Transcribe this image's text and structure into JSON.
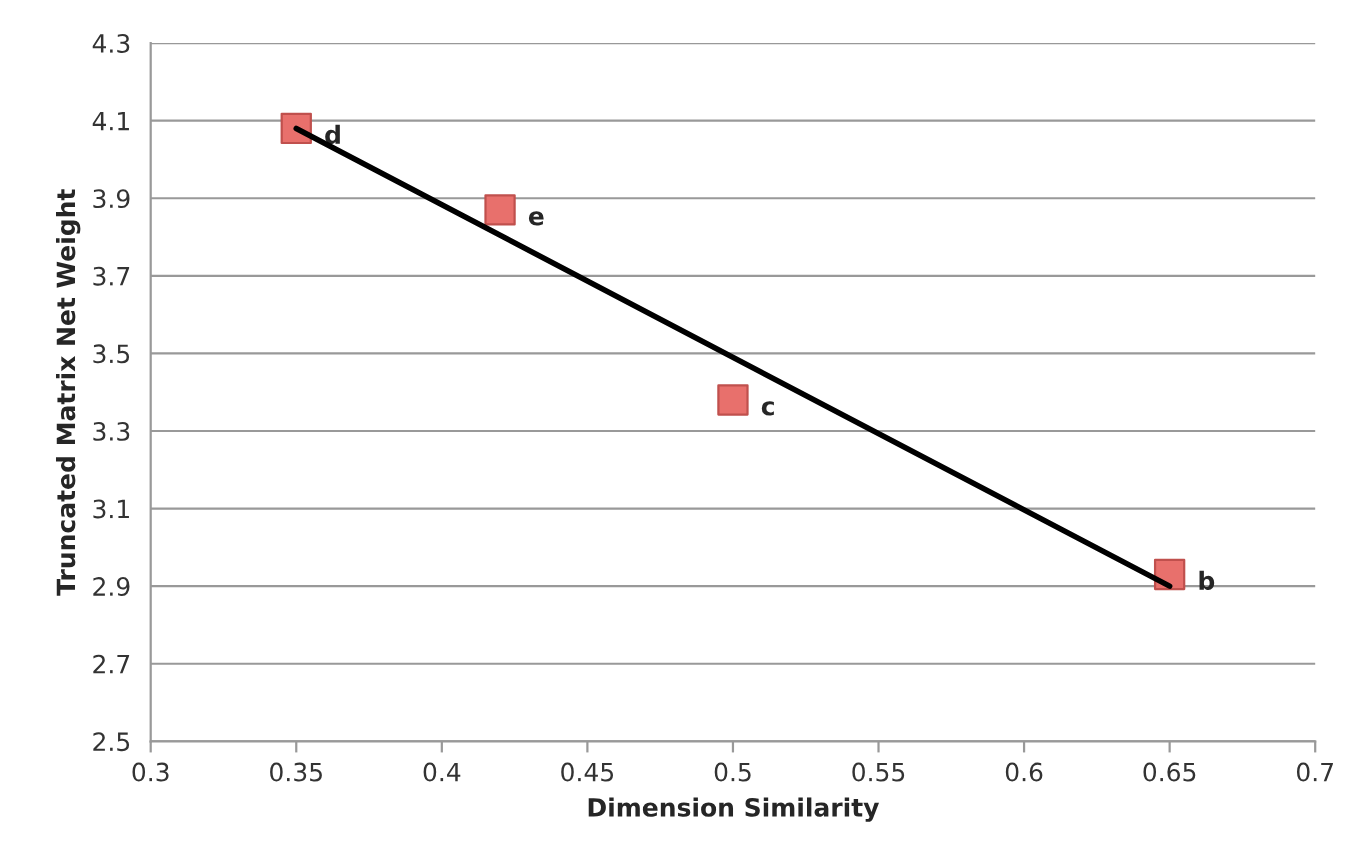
{
  "chart_data": {
    "type": "scatter",
    "xlabel": "Dimension Similarity",
    "ylabel": "Truncated Matrix Net Weight",
    "series": [
      {
        "color": "#e8706c",
        "x": [
          0.35,
          0.42,
          0.5,
          0.65
        ],
        "values": [
          4.08,
          3.87,
          3.38,
          2.93
        ],
        "marker": "square"
      },
      {
        "type": "line",
        "color": "#000000",
        "x": [
          0.35,
          0.65
        ],
        "values": [
          4.08,
          2.9
        ],
        "marker": "none",
        "line_style": "solid"
      }
    ],
    "annotations": [
      {
        "text": "d",
        "x": 0.35,
        "y": 4.08
      },
      {
        "text": "e",
        "x": 0.42,
        "y": 3.87
      },
      {
        "text": "c",
        "x": 0.5,
        "y": 3.38
      },
      {
        "text": "b",
        "x": 0.65,
        "y": 2.93
      }
    ],
    "xlim": [
      0.3,
      0.7
    ],
    "xticks": [
      0.3,
      0.35,
      0.4,
      0.45,
      0.5,
      0.55,
      0.6,
      0.65,
      0.7
    ],
    "ylim": [
      2.5,
      4.3
    ],
    "yticks": [
      2.5,
      2.7,
      2.9,
      3.1,
      3.3,
      3.5,
      3.7,
      3.9,
      4.1,
      4.3
    ],
    "grid": "y",
    "legend": false
  }
}
